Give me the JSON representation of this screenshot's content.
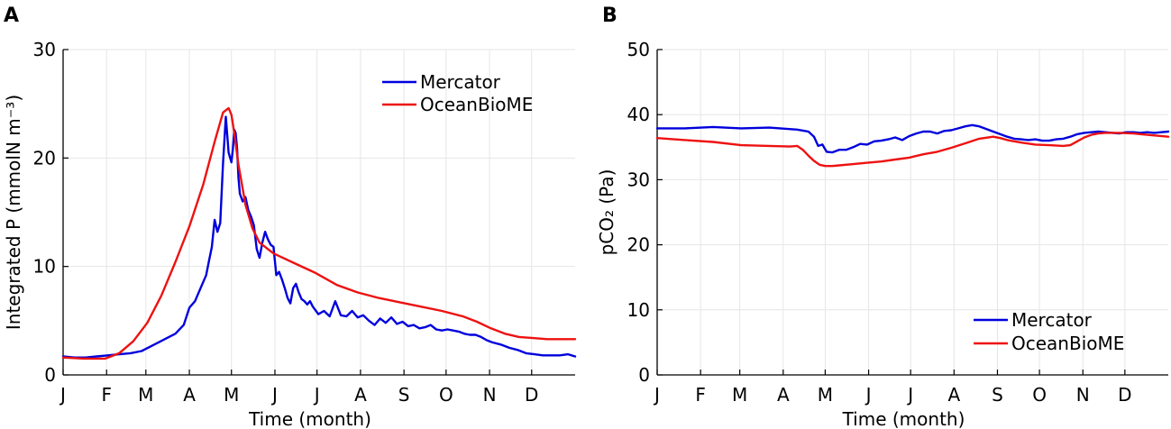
{
  "chart_data": [
    {
      "panel": "A",
      "type": "line",
      "xlabel": "Time (month)",
      "ylabel": "Integrated P (mmolN m⁻³)",
      "xlim": [
        0,
        365
      ],
      "ylim": [
        0,
        30
      ],
      "yticks": [
        0,
        10,
        20,
        30
      ],
      "ytick_labels": [
        "0",
        "10",
        "20",
        "30"
      ],
      "xticks": [
        0,
        31,
        59,
        90,
        120,
        151,
        181,
        212,
        243,
        273,
        304,
        334
      ],
      "xtick_labels": [
        "J",
        "F",
        "M",
        "A",
        "M",
        "J",
        "J",
        "A",
        "S",
        "O",
        "N",
        "D"
      ],
      "grid": true,
      "legend_position": "top-right",
      "series": [
        {
          "name": "Mercator",
          "color": "#0000dd",
          "x": [
            0,
            8,
            16,
            24,
            32,
            40,
            48,
            56,
            62,
            68,
            74,
            80,
            86,
            90,
            94,
            98,
            102,
            104,
            106,
            108,
            110,
            112,
            114,
            116,
            118,
            120,
            121,
            122,
            123,
            124,
            125,
            126,
            128,
            130,
            132,
            134,
            136,
            138,
            140,
            142,
            144,
            146,
            148,
            150,
            152,
            154,
            156,
            158,
            160,
            162,
            164,
            166,
            168,
            170,
            172,
            174,
            176,
            178,
            182,
            186,
            190,
            194,
            198,
            202,
            206,
            210,
            214,
            218,
            222,
            226,
            230,
            234,
            238,
            242,
            246,
            250,
            254,
            258,
            262,
            266,
            270,
            274,
            278,
            282,
            286,
            290,
            294,
            298,
            302,
            306,
            312,
            318,
            324,
            330,
            336,
            342,
            348,
            354,
            360,
            365
          ],
          "y": [
            1.7,
            1.6,
            1.6,
            1.7,
            1.8,
            1.9,
            2.0,
            2.2,
            2.6,
            3.0,
            3.4,
            3.8,
            4.6,
            6.2,
            6.8,
            8.0,
            9.2,
            10.5,
            11.8,
            14.3,
            13.2,
            14.0,
            19.5,
            23.8,
            20.5,
            19.6,
            20.8,
            22.6,
            22.3,
            20.9,
            18.2,
            16.7,
            16.0,
            16.4,
            15.2,
            14.6,
            13.8,
            11.6,
            10.8,
            12.2,
            13.2,
            12.5,
            12.0,
            11.8,
            9.2,
            9.5,
            8.8,
            8.0,
            7.1,
            6.6,
            8.0,
            8.4,
            7.6,
            7.0,
            6.8,
            6.5,
            6.8,
            6.3,
            5.6,
            5.9,
            5.4,
            6.8,
            5.5,
            5.4,
            5.9,
            5.3,
            5.5,
            5.0,
            4.6,
            5.2,
            4.8,
            5.3,
            4.7,
            4.9,
            4.5,
            4.6,
            4.3,
            4.4,
            4.6,
            4.2,
            4.1,
            4.2,
            4.1,
            4.0,
            3.8,
            3.7,
            3.7,
            3.5,
            3.2,
            3.0,
            2.8,
            2.5,
            2.3,
            2.0,
            1.9,
            1.8,
            1.8,
            1.8,
            1.9,
            1.7
          ]
        },
        {
          "name": "OceanBioME",
          "color": "#ee1111",
          "x": [
            0,
            15,
            30,
            40,
            50,
            60,
            70,
            80,
            90,
            100,
            108,
            114,
            118,
            120,
            122,
            125,
            130,
            135,
            140,
            150,
            165,
            180,
            195,
            210,
            225,
            240,
            255,
            270,
            285,
            295,
            305,
            315,
            325,
            335,
            345,
            355,
            365
          ],
          "y": [
            1.6,
            1.5,
            1.5,
            2.0,
            3.1,
            4.8,
            7.3,
            10.4,
            13.7,
            17.6,
            21.5,
            24.2,
            24.6,
            24.0,
            22.3,
            19.4,
            15.7,
            13.5,
            12.2,
            11.2,
            10.3,
            9.4,
            8.3,
            7.6,
            7.1,
            6.7,
            6.3,
            5.9,
            5.4,
            4.9,
            4.3,
            3.8,
            3.5,
            3.4,
            3.3,
            3.3,
            3.3
          ]
        }
      ]
    },
    {
      "panel": "B",
      "type": "line",
      "xlabel": "Time (month)",
      "ylabel": "pCO₂ (Pa)",
      "xlim": [
        0,
        365
      ],
      "ylim": [
        0,
        50
      ],
      "yticks": [
        0,
        10,
        20,
        30,
        40,
        50
      ],
      "ytick_labels": [
        "0",
        "10",
        "20",
        "30",
        "40",
        "50"
      ],
      "xticks": [
        0,
        31,
        59,
        90,
        120,
        151,
        181,
        212,
        243,
        273,
        304,
        334
      ],
      "xtick_labels": [
        "J",
        "F",
        "M",
        "A",
        "M",
        "J",
        "J",
        "A",
        "S",
        "O",
        "N",
        "D"
      ],
      "grid": true,
      "legend_position": "bottom-right",
      "series": [
        {
          "name": "Mercator",
          "color": "#0000dd",
          "x": [
            0,
            20,
            40,
            60,
            80,
            100,
            108,
            112,
            115,
            118,
            121,
            125,
            130,
            135,
            140,
            145,
            150,
            155,
            160,
            165,
            170,
            175,
            180,
            185,
            190,
            195,
            200,
            205,
            210,
            215,
            220,
            225,
            230,
            235,
            240,
            245,
            250,
            255,
            260,
            265,
            270,
            275,
            280,
            285,
            290,
            295,
            300,
            305,
            310,
            315,
            320,
            325,
            330,
            335,
            340,
            345,
            350,
            355,
            360,
            365
          ],
          "y": [
            37.9,
            37.9,
            38.1,
            37.9,
            38.0,
            37.7,
            37.4,
            36.6,
            35.2,
            35.4,
            34.3,
            34.2,
            34.6,
            34.6,
            35.0,
            35.5,
            35.4,
            35.9,
            36.0,
            36.2,
            36.5,
            36.1,
            36.7,
            37.1,
            37.4,
            37.4,
            37.1,
            37.5,
            37.6,
            37.9,
            38.2,
            38.4,
            38.2,
            37.8,
            37.4,
            37.0,
            36.6,
            36.3,
            36.2,
            36.1,
            36.2,
            36.0,
            36.0,
            36.2,
            36.3,
            36.6,
            37.0,
            37.2,
            37.3,
            37.4,
            37.3,
            37.2,
            37.1,
            37.3,
            37.3,
            37.2,
            37.3,
            37.2,
            37.3,
            37.4
          ]
        },
        {
          "name": "OceanBioME",
          "color": "#ee1111",
          "x": [
            0,
            20,
            40,
            60,
            80,
            95,
            100,
            104,
            108,
            112,
            116,
            120,
            125,
            130,
            140,
            150,
            160,
            170,
            180,
            190,
            200,
            210,
            220,
            230,
            240,
            245,
            250,
            260,
            270,
            280,
            290,
            295,
            300,
            305,
            310,
            315,
            320,
            330,
            340,
            350,
            365
          ],
          "y": [
            36.4,
            36.1,
            35.8,
            35.3,
            35.2,
            35.1,
            35.2,
            34.6,
            33.7,
            32.9,
            32.3,
            32.1,
            32.1,
            32.2,
            32.4,
            32.6,
            32.8,
            33.1,
            33.4,
            33.9,
            34.3,
            34.9,
            35.6,
            36.3,
            36.6,
            36.4,
            36.1,
            35.7,
            35.4,
            35.3,
            35.2,
            35.3,
            35.9,
            36.5,
            36.9,
            37.1,
            37.2,
            37.2,
            37.1,
            36.9,
            36.6
          ]
        }
      ]
    }
  ]
}
